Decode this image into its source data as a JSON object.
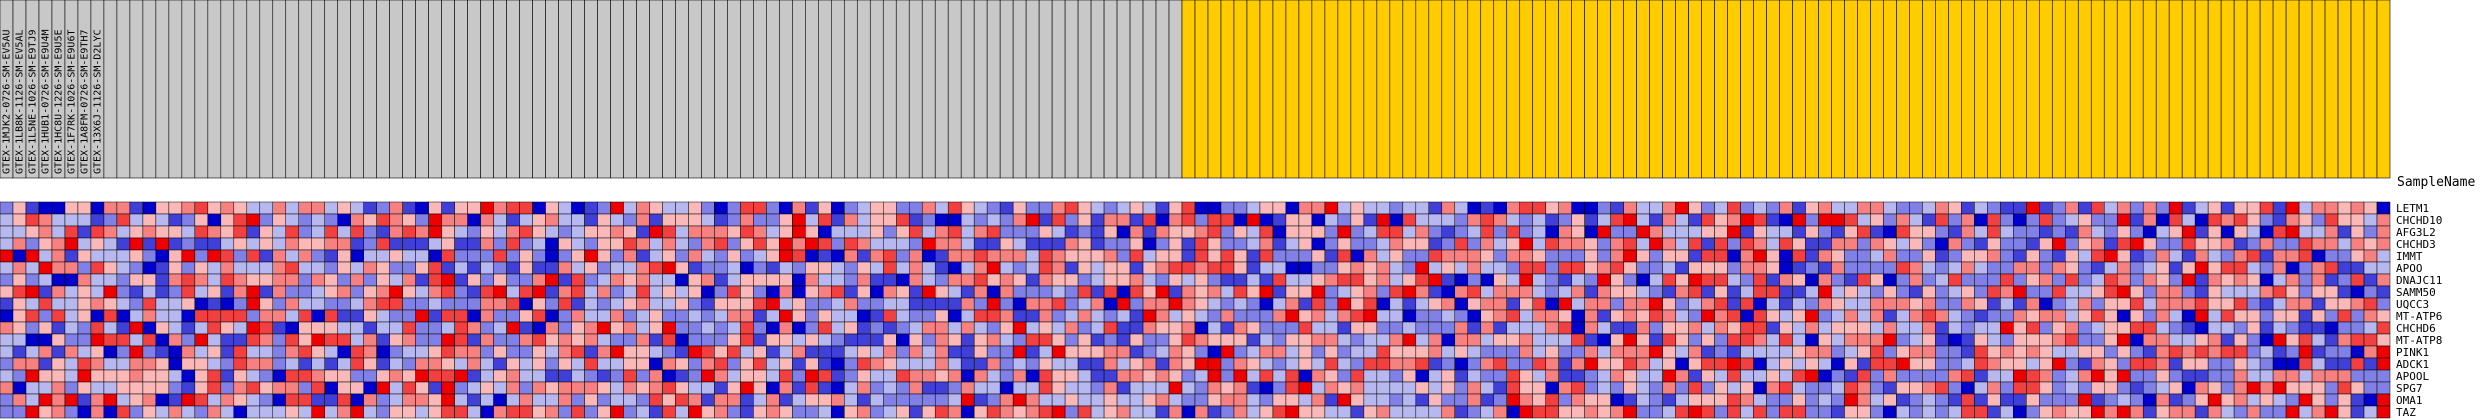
{
  "chart_data": {
    "type": "heatmap",
    "row_header": "SampleName",
    "rows": [
      "LETM1",
      "CHCHD10",
      "AFG3L2",
      "CHCHD3",
      "IMMT",
      "APOO",
      "DNAJC11",
      "SAMM50",
      "UQCC3",
      "MT-ATP6",
      "CHCHD6",
      "MT-ATP8",
      "PINK1",
      "ADCK1",
      "APOOL",
      "SPG7",
      "OMA1",
      "TAZ"
    ],
    "column_groups": [
      {
        "count": 91,
        "color": "#c8c8c8"
      },
      {
        "count": 93,
        "color": "#ffcc00"
      }
    ],
    "visible_columns": [
      "GTEX-1MJK2-0726-SM-EV5AU",
      "GTEX-1LB8K-1126-SM-EV5AL",
      "GTEX-1L5NE-1026-SM-E9TJ9",
      "GTEX-1HUB1-0726-SM-E9U4M",
      "GTEX-1HC8U-1226-SM-E9U5E",
      "GTEX-1F7RK-1026-SM-E9U6T",
      "GTEX-1A8FM-0726-SM-E9TH7",
      "GTEX-13X6J-1126-SM-D2LYC"
    ],
    "color_scale": {
      "low": "#0000cc",
      "mid": "#ffffff",
      "high": "#ee0000"
    },
    "seed": 91
  }
}
